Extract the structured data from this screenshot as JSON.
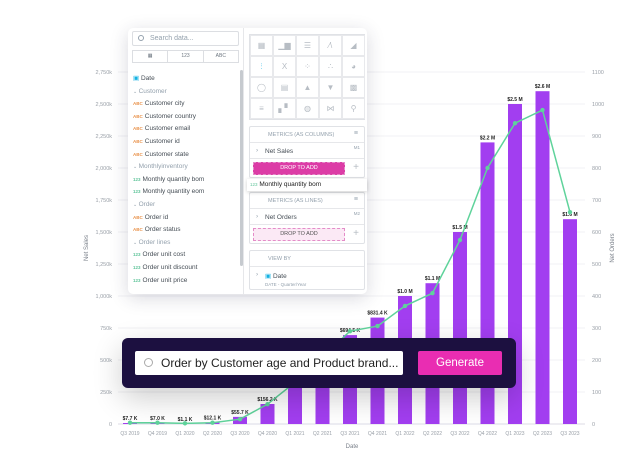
{
  "chart_data": {
    "type": "bar+line",
    "xlabel": "Date",
    "ylabel": "Net Sales",
    "y2label": "Net Orders",
    "categories": [
      "Q3 2019",
      "Q4 2019",
      "Q1 2020",
      "Q2 2020",
      "Q3 2020",
      "Q4 2020",
      "Q1 2021",
      "Q2 2021",
      "Q3 2021",
      "Q4 2021",
      "Q1 2022",
      "Q2 2022",
      "Q3 2022",
      "Q4 2022",
      "Q1 2023",
      "Q2 2023",
      "Q3 2023"
    ],
    "series": [
      {
        "name": "Net Sales",
        "type": "bar",
        "axis": "left",
        "color": "#a23ef0",
        "values": [
          7700,
          7000,
          1100,
          12100,
          55700,
          156200,
          330000,
          480000,
          694500,
          831400,
          1000000,
          1100000,
          1500000,
          2200000,
          2500000,
          2600000,
          1600000
        ],
        "labels": [
          "$7.7 K",
          "$7.0 K",
          "$1.1 K",
          "$12.1 K",
          "$55.7 K",
          "$156.2 K",
          "",
          "",
          "$694.5 K",
          "$831.4 K",
          "$1.0 M",
          "$1.1 M",
          "$1.5 M",
          "$2.2 M",
          "$2.5 M",
          "$2.6 M",
          "$1.6 M"
        ]
      },
      {
        "name": "Net Orders",
        "type": "line",
        "axis": "right",
        "color": "#5fd39b",
        "values": [
          4,
          4,
          2,
          4,
          15,
          62,
          130,
          210,
          290,
          306,
          369,
          409,
          575,
          800,
          940,
          981,
          662
        ]
      }
    ],
    "ylim": [
      0,
      2750000
    ],
    "y2lim": [
      0,
      1100
    ],
    "yticks": [
      "0",
      "250k",
      "500k",
      "750k",
      "1,000k",
      "1,250k",
      "1,500k",
      "1,750k",
      "2,000k",
      "2,250k",
      "2,500k",
      "2,750k"
    ],
    "y2ticks": [
      "0",
      "100",
      "200",
      "300",
      "400",
      "500",
      "600",
      "700",
      "800",
      "900",
      "1000",
      "1100"
    ],
    "grid": true
  },
  "panel": {
    "search_placeholder": "Search data...",
    "filters": [
      "▦",
      "123",
      "ABC"
    ],
    "fields": [
      {
        "type": "date",
        "label": "Date"
      },
      {
        "type": "group",
        "label": "Customer"
      },
      {
        "type": "ABC",
        "label": "Customer city"
      },
      {
        "type": "ABC",
        "label": "Customer country"
      },
      {
        "type": "ABC",
        "label": "Customer email"
      },
      {
        "type": "ABC",
        "label": "Customer id"
      },
      {
        "type": "ABC",
        "label": "Customer state"
      },
      {
        "type": "group",
        "label": "Monthlyinventory"
      },
      {
        "type": "123",
        "label": "Monthly quantity bom"
      },
      {
        "type": "123",
        "label": "Monthly quantity eom"
      },
      {
        "type": "group",
        "label": "Order"
      },
      {
        "type": "ABC",
        "label": "Order id"
      },
      {
        "type": "ABC",
        "label": "Order status"
      },
      {
        "type": "group",
        "label": "Order lines"
      },
      {
        "type": "123",
        "label": "Order unit cost"
      },
      {
        "type": "123",
        "label": "Order unit discount"
      },
      {
        "type": "123",
        "label": "Order unit price"
      }
    ],
    "chart_types": [
      "table",
      "column",
      "bar",
      "line",
      "area",
      "combo",
      "headline",
      "scatter",
      "bubble",
      "pie",
      "donut",
      "treemap",
      "pyramid",
      "funnel",
      "heatmap",
      "bullet",
      "waterfall",
      "dependency-wheel",
      "sankey",
      "geo-pushpin"
    ],
    "metrics_columns": {
      "title": "METRICS",
      "sub": "(AS COLUMNS)",
      "item": "Net Sales",
      "tag": "M1",
      "drop": "DROP TO ADD"
    },
    "metrics_lines": {
      "title": "METRICS",
      "sub": "(AS LINES)",
      "item": "Net Orders",
      "tag": "M2",
      "drop": "DROP TO ADD"
    },
    "view_by": {
      "title": "VIEW BY",
      "item": "Date",
      "sub": "DATE - Quarter/Year"
    },
    "drag_item": {
      "type": "123",
      "label": "Monthly quantity bom"
    }
  },
  "prompt": {
    "value": "Order by Customer age and Product brand...",
    "button": "Generate"
  }
}
